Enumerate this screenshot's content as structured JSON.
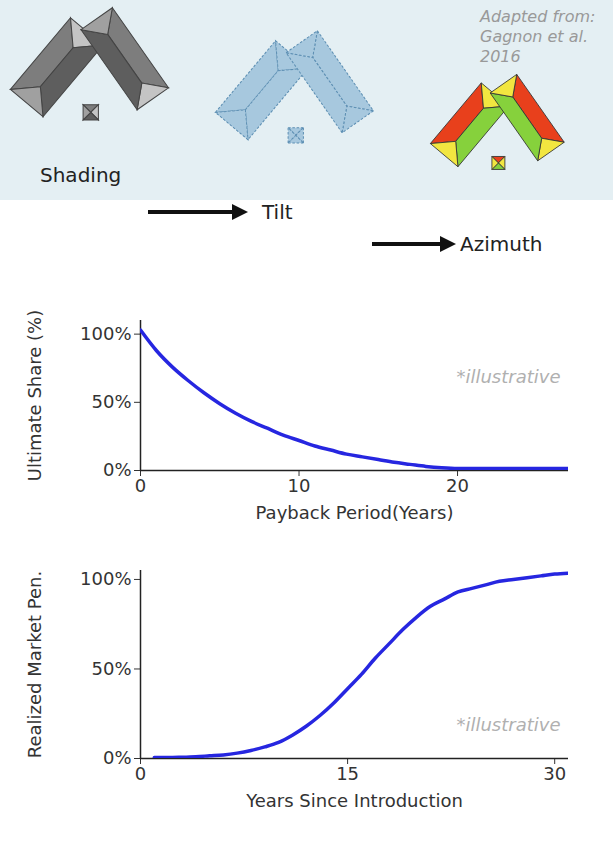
{
  "header": {
    "credit": "Adapted from: Gagnon et al. 2016",
    "steps": [
      "Shading",
      "Tilt",
      "Azimuth"
    ]
  },
  "chart_data": [
    {
      "type": "line",
      "color": "#2626e0",
      "xlabel": "Payback Period(Years)",
      "ylabel": "Ultimate Share (%)",
      "x": [
        0,
        1,
        2,
        3,
        4,
        5,
        6,
        7,
        8,
        9,
        10,
        11,
        12,
        13,
        14,
        15,
        16,
        17,
        18,
        19,
        20,
        21,
        22,
        23,
        24,
        25,
        26,
        27
      ],
      "values": [
        103,
        88,
        76,
        66,
        57,
        49,
        42,
        36,
        31,
        26,
        22,
        18,
        15,
        12,
        10,
        8,
        6,
        4.5,
        3,
        2,
        1.5,
        1.5,
        1.5,
        1.5,
        1.5,
        1.5,
        1.5,
        1.5
      ],
      "xlim": [
        0,
        27
      ],
      "xticks": [
        0,
        10,
        20
      ],
      "ylim": [
        0,
        110
      ],
      "yticks": [
        {
          "value": 0,
          "label": "0%"
        },
        {
          "value": 50,
          "label": "50%"
        },
        {
          "value": 100,
          "label": "100%"
        }
      ],
      "annotations": [
        "*illustrative"
      ]
    },
    {
      "type": "line",
      "color": "#2626e0",
      "xlabel": "Years Since Introduction",
      "ylabel": "Realized Market Pen.",
      "x": [
        1,
        2,
        3,
        4,
        5,
        6,
        7,
        8,
        9,
        10,
        11,
        12,
        13,
        14,
        15,
        16,
        17,
        18,
        19,
        20,
        21,
        22,
        23,
        24,
        25,
        26,
        27,
        28,
        29,
        30,
        31
      ],
      "values": [
        0.5,
        0.5,
        0.7,
        1,
        1.5,
        2,
        3,
        4.5,
        6.5,
        9,
        13,
        18,
        24,
        31,
        39,
        47,
        56,
        64,
        72,
        79,
        85,
        89,
        93,
        95,
        97,
        99,
        100,
        101,
        102,
        103,
        103.5
      ],
      "xlim": [
        0,
        31
      ],
      "xticks": [
        0,
        15,
        30
      ],
      "ylim": [
        0,
        105
      ],
      "yticks": [
        {
          "value": 0,
          "label": "0%"
        },
        {
          "value": 50,
          "label": "50%"
        },
        {
          "value": 100,
          "label": "100%"
        }
      ],
      "annotations": [
        "*illustrative"
      ]
    }
  ]
}
